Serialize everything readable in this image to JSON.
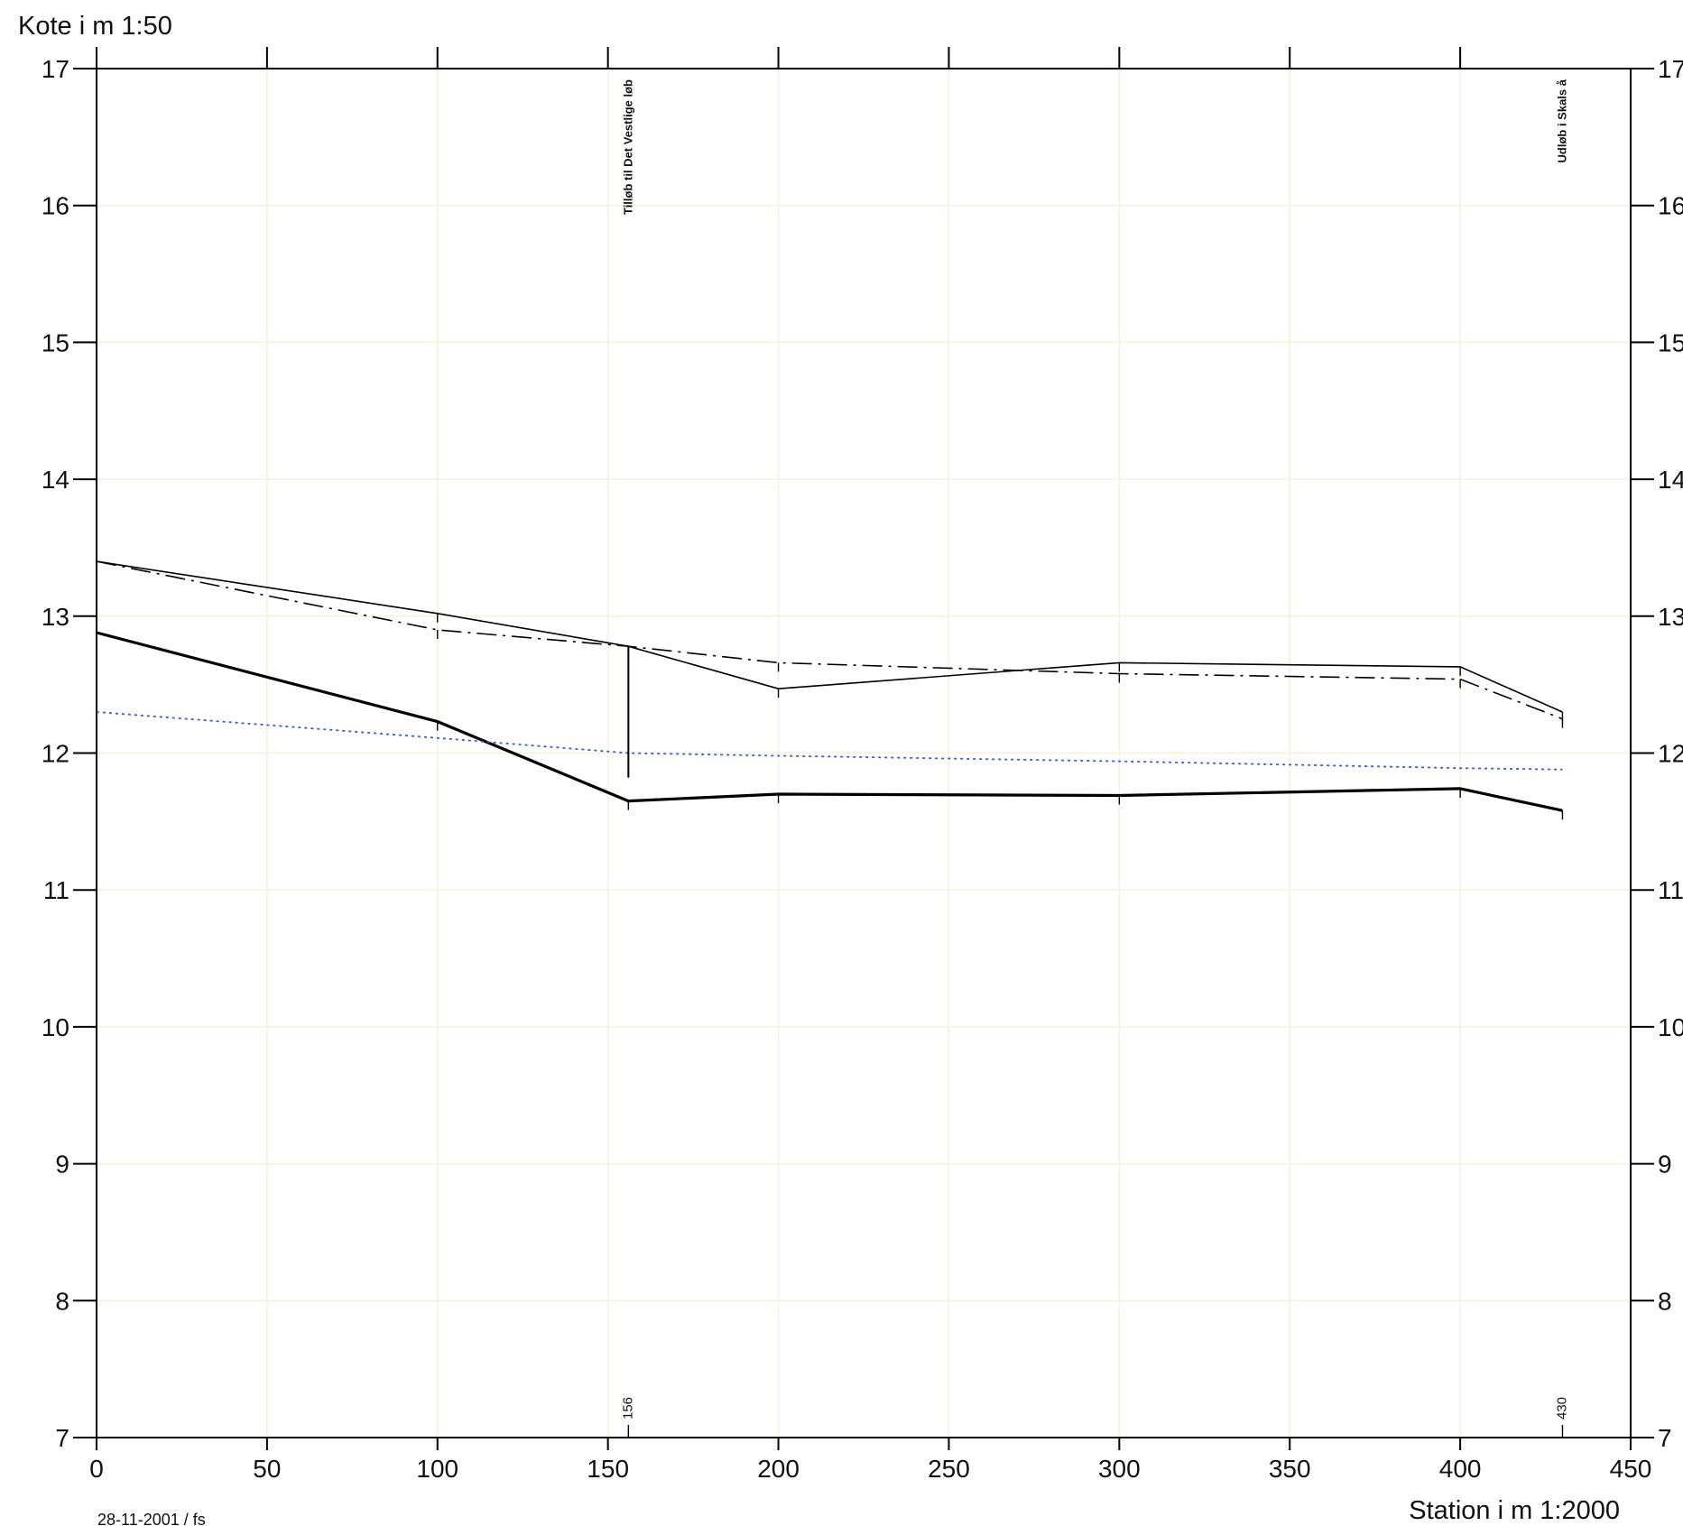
{
  "chart_data": {
    "type": "line",
    "title": "",
    "ylabel": "Kote i m 1:50",
    "xlabel": "Station i m  1:2000",
    "date_label": "28-11-2001 / fs",
    "xlim": [
      0,
      450
    ],
    "ylim": [
      7,
      17
    ],
    "x_ticks": [
      0,
      50,
      100,
      150,
      200,
      250,
      300,
      350,
      400,
      450
    ],
    "y_ticks": [
      7,
      8,
      9,
      10,
      11,
      12,
      13,
      14,
      15,
      16,
      17
    ],
    "x_tick_labels": [
      "0",
      "50",
      "100",
      "150",
      "200",
      "250",
      "300",
      "350",
      "400",
      "450"
    ],
    "y_tick_labels": [
      "7",
      "8",
      "9",
      "10",
      "11",
      "12",
      "13",
      "14",
      "15",
      "16",
      "17"
    ],
    "grid": true,
    "grid_color": "#f4f2d8",
    "series": [
      {
        "style": "solid",
        "color": "#000000",
        "x": [
          0,
          100,
          156,
          200,
          300,
          400,
          430
        ],
        "y": [
          13.4,
          13.02,
          12.78,
          12.47,
          12.66,
          12.63,
          12.3
        ]
      },
      {
        "style": "dashdot",
        "color": "#000000",
        "x": [
          0,
          100,
          156,
          200,
          300,
          400,
          430
        ],
        "y": [
          13.4,
          12.9,
          12.78,
          12.66,
          12.58,
          12.54,
          12.25
        ]
      },
      {
        "style": "solid-thick",
        "color": "#000000",
        "x": [
          0,
          100,
          156,
          200,
          300,
          400,
          430
        ],
        "y": [
          12.88,
          12.23,
          11.65,
          11.7,
          11.69,
          11.74,
          11.58
        ]
      },
      {
        "style": "dotted",
        "color": "#3a5fcd",
        "x": [
          0,
          100,
          156,
          200,
          300,
          400,
          430
        ],
        "y": [
          12.3,
          12.11,
          12.0,
          11.98,
          11.94,
          11.89,
          11.88
        ]
      }
    ],
    "annotations": [
      {
        "x": 156,
        "top_text": "Tilløb til Det Vestlige løb",
        "bottom_text": "156",
        "line_from": 12.78,
        "line_to": 11.82
      },
      {
        "x": 430,
        "top_text": "Udløb i Skals å",
        "bottom_text": "430"
      }
    ]
  }
}
